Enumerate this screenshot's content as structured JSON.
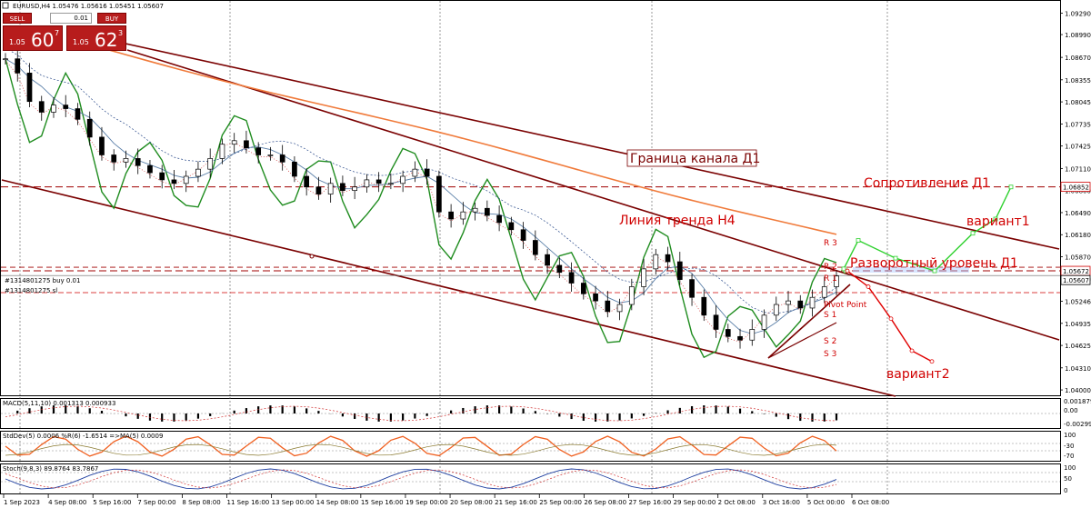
{
  "header": {
    "symbol_info": "EURUSD,H4  1.05476 1.05616 1.05451 1.05607"
  },
  "trade_panel": {
    "sell_label": "SELL",
    "buy_label": "BUY",
    "lot": "0.01",
    "sell_small": "1.05",
    "sell_big": "60",
    "sell_sup": "7",
    "buy_small": "1.05",
    "buy_big": "62",
    "buy_sup": "3"
  },
  "colors": {
    "candle": "#000000",
    "trend_lines": "#7a0000",
    "annotation_red": "#d00000",
    "green_line": "#1f8c1f",
    "ma_orange": "#f07a3a",
    "variant1": "#2fd12f",
    "variant2": "#e00000"
  },
  "annotations": {
    "channel_d1": "Граница канала Д1",
    "resistance_d1": "Сопротивление Д1",
    "trend_h4": "Линия тренда Н4",
    "reversal": "Разворотный уровень Д1",
    "variant1": "вариант1",
    "variant2": "вариант2",
    "pivot": "Pivot Point",
    "r3": "R 3",
    "r2": "R 2",
    "r1": "R 1",
    "s1": "S 1",
    "s2": "S 2",
    "s3": "S 3"
  },
  "orders": {
    "buy": "#1314801275 buy 0.01",
    "sl": "#1314801275 sl"
  },
  "indicators": {
    "macd_label": "MACD(5,11,10) 0.001313 0.000933",
    "stddev_label": "StdDev(5) 0.0006  %R(6) -1.6514  =>MA(5) 0.0009",
    "stoch_label": "Stoch(9,8,3) 89.8764 83.7867"
  },
  "chart_data": {
    "type": "candlestick",
    "symbol": "EURUSD",
    "timeframe": "H4",
    "price_axis_ticks": [
      "1.09290",
      "1.08990",
      "1.08670",
      "1.08355",
      "1.08045",
      "1.07735",
      "1.07425",
      "1.07110",
      "1.06800",
      "1.06490",
      "1.06180",
      "1.05870",
      "1.05560",
      "1.05246",
      "1.04935",
      "1.04625",
      "1.04310",
      "1.04000"
    ],
    "price_range": [
      1.0395,
      1.0945
    ],
    "current_price": "1.05607",
    "level_tags": [
      "1.06852",
      "1.05672",
      "1.05607"
    ],
    "levels": {
      "resistance": 1.06852,
      "reversal": 1.05672,
      "current": 1.05607
    },
    "x_ticks": [
      "1 Sep 2023",
      "4 Sep 08:00",
      "5 Sep 16:00",
      "7 Sep 00:00",
      "8 Sep 08:00",
      "11 Sep 16:00",
      "13 Sep 00:00",
      "14 Sep 08:00",
      "15 Sep 16:00",
      "19 Sep 00:00",
      "20 Sep 08:00",
      "21 Sep 16:00",
      "25 Sep 00:00",
      "26 Sep 08:00",
      "27 Sep 16:00",
      "29 Sep 00:00",
      "2 Oct 08:00",
      "3 Oct 16:00",
      "5 Oct 00:00",
      "6 Oct 08:00"
    ],
    "close_path": [
      1.0865,
      1.0845,
      1.0805,
      1.079,
      1.08,
      1.0795,
      1.078,
      1.0755,
      1.073,
      1.072,
      1.0725,
      1.0715,
      1.0705,
      1.0695,
      1.069,
      1.07,
      1.071,
      1.0725,
      1.0745,
      1.075,
      1.074,
      1.073,
      1.073,
      1.072,
      1.07,
      1.0685,
      1.0675,
      1.069,
      1.068,
      1.0685,
      1.0695,
      1.069,
      1.069,
      1.07,
      1.071,
      1.07,
      1.065,
      1.064,
      1.065,
      1.0655,
      1.0645,
      1.0635,
      1.0625,
      1.061,
      1.059,
      1.0575,
      1.0565,
      1.055,
      1.0535,
      1.0525,
      1.051,
      1.052,
      1.0545,
      1.057,
      1.059,
      1.058,
      1.0555,
      1.053,
      1.0505,
      1.0485,
      1.0475,
      1.047,
      1.0485,
      1.0505,
      1.052,
      1.0525,
      1.0515,
      1.053,
      1.0545,
      1.056
    ],
    "variant1_path": [
      1.05672,
      1.057,
      1.061,
      1.0585,
      1.05672,
      1.062,
      1.064,
      1.0685
    ],
    "variant2_path": [
      1.05672,
      1.0545,
      1.05,
      1.0455,
      1.044
    ],
    "macd_axis": [
      "0.001879",
      "0.00",
      "-0.002995"
    ],
    "stddev_axis": [
      "100",
      "-30",
      "-70"
    ],
    "stoch_axis": [
      "100",
      "50",
      "0"
    ]
  }
}
